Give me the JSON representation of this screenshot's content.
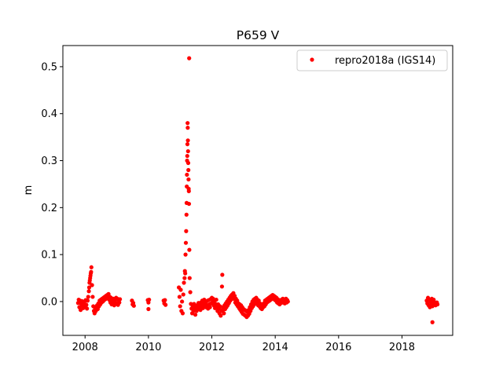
{
  "chart_data": {
    "type": "scatter",
    "title": "P659 V",
    "xlabel": "",
    "ylabel": "m",
    "xlim": [
      2007.3,
      2019.6
    ],
    "ylim": [
      -0.072,
      0.545
    ],
    "x_ticks": [
      2008,
      2010,
      2012,
      2014,
      2016,
      2018
    ],
    "x_tick_labels": [
      "2008",
      "2010",
      "2012",
      "2014",
      "2016",
      "2018"
    ],
    "y_ticks": [
      0.0,
      0.1,
      0.2,
      0.3,
      0.4,
      0.5
    ],
    "y_tick_labels": [
      "0.0",
      "0.1",
      "0.2",
      "0.3",
      "0.4",
      "0.5"
    ],
    "grid": false,
    "legend_position": "top-right",
    "marker_color": "#ff0000",
    "series": [
      {
        "name": "repro2018a (IGS14)",
        "color": "#ff0000",
        "points": [
          [
            2007.78,
            -0.003
          ],
          [
            2007.8,
            0.004
          ],
          [
            2007.82,
            -0.012
          ],
          [
            2007.84,
            0.002
          ],
          [
            2007.86,
            -0.018
          ],
          [
            2007.88,
            -0.005
          ],
          [
            2007.9,
            0.001
          ],
          [
            2007.92,
            -0.009
          ],
          [
            2007.94,
            -0.014
          ],
          [
            2007.96,
            -0.006
          ],
          [
            2007.98,
            0.0
          ],
          [
            2008.0,
            -0.011
          ],
          [
            2008.02,
            0.003
          ],
          [
            2008.04,
            -0.007
          ],
          [
            2008.06,
            -0.015
          ],
          [
            2008.08,
            0.002
          ],
          [
            2008.1,
            0.01
          ],
          [
            2008.12,
            0.022
          ],
          [
            2008.13,
            0.03
          ],
          [
            2008.14,
            0.04
          ],
          [
            2008.15,
            0.045
          ],
          [
            2008.16,
            0.05
          ],
          [
            2008.17,
            0.055
          ],
          [
            2008.18,
            0.06
          ],
          [
            2008.19,
            0.063
          ],
          [
            2008.2,
            0.073
          ],
          [
            2008.22,
            0.035
          ],
          [
            2008.24,
            0.01
          ],
          [
            2008.26,
            -0.01
          ],
          [
            2008.28,
            -0.02
          ],
          [
            2008.3,
            -0.025
          ],
          [
            2008.32,
            -0.015
          ],
          [
            2008.34,
            -0.02
          ],
          [
            2008.36,
            -0.012
          ],
          [
            2008.38,
            -0.008
          ],
          [
            2008.4,
            -0.016
          ],
          [
            2008.42,
            -0.004
          ],
          [
            2008.44,
            -0.01
          ],
          [
            2008.46,
            0.002
          ],
          [
            2008.48,
            -0.006
          ],
          [
            2008.5,
            0.004
          ],
          [
            2008.52,
            -0.002
          ],
          [
            2008.54,
            0.006
          ],
          [
            2008.56,
            0.0
          ],
          [
            2008.58,
            0.008
          ],
          [
            2008.6,
            0.003
          ],
          [
            2008.62,
            0.01
          ],
          [
            2008.64,
            0.005
          ],
          [
            2008.66,
            0.012
          ],
          [
            2008.68,
            0.007
          ],
          [
            2008.7,
            0.014
          ],
          [
            2008.72,
            0.009
          ],
          [
            2008.74,
            0.016
          ],
          [
            2008.76,
            0.004
          ],
          [
            2008.78,
            0.01
          ],
          [
            2008.8,
            -0.002
          ],
          [
            2008.82,
            0.008
          ],
          [
            2008.84,
            -0.006
          ],
          [
            2008.86,
            0.003
          ],
          [
            2008.88,
            -0.004
          ],
          [
            2008.9,
            0.006
          ],
          [
            2008.92,
            -0.008
          ],
          [
            2008.94,
            0.002
          ],
          [
            2008.96,
            -0.005
          ],
          [
            2008.98,
            0.008
          ],
          [
            2009.0,
            -0.003
          ],
          [
            2009.02,
            0.006
          ],
          [
            2009.04,
            -0.007
          ],
          [
            2009.06,
            0.004
          ],
          [
            2009.08,
            -0.002
          ],
          [
            2009.1,
            0.005
          ],
          [
            2009.48,
            0.002
          ],
          [
            2009.5,
            -0.006
          ],
          [
            2009.52,
            -0.003
          ],
          [
            2009.54,
            -0.009
          ],
          [
            2009.98,
            0.003
          ],
          [
            2010.0,
            -0.002
          ],
          [
            2010.02,
            0.004
          ],
          [
            2010.0,
            -0.016
          ],
          [
            2010.48,
            0.002
          ],
          [
            2010.5,
            -0.004
          ],
          [
            2010.52,
            0.003
          ],
          [
            2010.54,
            -0.007
          ],
          [
            2010.96,
            0.03
          ],
          [
            2010.98,
            0.01
          ],
          [
            2011.0,
            -0.01
          ],
          [
            2011.02,
            0.025
          ],
          [
            2011.04,
            -0.02
          ],
          [
            2011.06,
            0.0
          ],
          [
            2011.08,
            -0.025
          ],
          [
            2011.1,
            0.015
          ],
          [
            2011.12,
            0.04
          ],
          [
            2011.14,
            0.05
          ],
          [
            2011.15,
            0.065
          ],
          [
            2011.16,
            0.06
          ],
          [
            2011.17,
            0.1
          ],
          [
            2011.18,
            0.125
          ],
          [
            2011.19,
            0.15
          ],
          [
            2011.2,
            0.185
          ],
          [
            2011.205,
            0.21
          ],
          [
            2011.21,
            0.245
          ],
          [
            2011.215,
            0.27
          ],
          [
            2011.22,
            0.3
          ],
          [
            2011.225,
            0.31
          ],
          [
            2011.23,
            0.335
          ],
          [
            2011.235,
            0.38
          ],
          [
            2011.24,
            0.37
          ],
          [
            2011.245,
            0.343
          ],
          [
            2011.25,
            0.32
          ],
          [
            2011.255,
            0.295
          ],
          [
            2011.26,
            0.28
          ],
          [
            2011.265,
            0.26
          ],
          [
            2011.27,
            0.24
          ],
          [
            2011.275,
            0.235
          ],
          [
            2011.28,
            0.208
          ],
          [
            2011.285,
            0.518
          ],
          [
            2011.29,
            0.11
          ],
          [
            2011.3,
            0.05
          ],
          [
            2011.32,
            0.02
          ],
          [
            2011.34,
            -0.005
          ],
          [
            2011.36,
            -0.015
          ],
          [
            2011.38,
            -0.025
          ],
          [
            2011.4,
            -0.01
          ],
          [
            2011.42,
            -0.02
          ],
          [
            2011.44,
            -0.005
          ],
          [
            2011.46,
            -0.015
          ],
          [
            2011.48,
            -0.028
          ],
          [
            2011.5,
            -0.012
          ],
          [
            2011.52,
            -0.02
          ],
          [
            2011.54,
            -0.008
          ],
          [
            2011.56,
            -0.016
          ],
          [
            2011.58,
            -0.003
          ],
          [
            2011.6,
            -0.012
          ],
          [
            2011.62,
            -0.006
          ],
          [
            2011.64,
            -0.018
          ],
          [
            2011.66,
            -0.002
          ],
          [
            2011.68,
            -0.01
          ],
          [
            2011.7,
            0.002
          ],
          [
            2011.72,
            -0.014
          ],
          [
            2011.74,
            -0.006
          ],
          [
            2011.76,
            0.004
          ],
          [
            2011.78,
            -0.009
          ],
          [
            2011.8,
            -0.002
          ],
          [
            2011.82,
            -0.012
          ],
          [
            2011.84,
            0.001
          ],
          [
            2011.86,
            -0.008
          ],
          [
            2011.88,
            -0.015
          ],
          [
            2011.9,
            0.003
          ],
          [
            2011.92,
            -0.006
          ],
          [
            2011.94,
            -0.012
          ],
          [
            2011.96,
            0.005
          ],
          [
            2011.98,
            -0.004
          ],
          [
            2012.0,
            0.008
          ],
          [
            2012.02,
            -0.002
          ],
          [
            2012.04,
            0.006
          ],
          [
            2012.06,
            -0.008
          ],
          [
            2012.08,
            0.002
          ],
          [
            2012.1,
            -0.014
          ],
          [
            2012.12,
            -0.005
          ],
          [
            2012.14,
            0.004
          ],
          [
            2012.16,
            -0.01
          ],
          [
            2012.18,
            -0.02
          ],
          [
            2012.2,
            -0.006
          ],
          [
            2012.22,
            -0.015
          ],
          [
            2012.24,
            -0.025
          ],
          [
            2012.26,
            -0.01
          ],
          [
            2012.28,
            -0.03
          ],
          [
            2012.3,
            -0.018
          ],
          [
            2012.32,
            0.032
          ],
          [
            2012.33,
            0.057
          ],
          [
            2012.34,
            -0.02
          ],
          [
            2012.36,
            -0.012
          ],
          [
            2012.38,
            -0.025
          ],
          [
            2012.4,
            -0.008
          ],
          [
            2012.42,
            -0.016
          ],
          [
            2012.44,
            -0.004
          ],
          [
            2012.46,
            -0.012
          ],
          [
            2012.48,
            0.0
          ],
          [
            2012.5,
            -0.008
          ],
          [
            2012.52,
            0.004
          ],
          [
            2012.54,
            -0.003
          ],
          [
            2012.56,
            0.008
          ],
          [
            2012.58,
            0.002
          ],
          [
            2012.6,
            0.012
          ],
          [
            2012.62,
            0.005
          ],
          [
            2012.64,
            0.015
          ],
          [
            2012.66,
            0.008
          ],
          [
            2012.68,
            0.018
          ],
          [
            2012.7,
            0.006
          ],
          [
            2012.72,
            0.012
          ],
          [
            2012.74,
            -0.002
          ],
          [
            2012.76,
            0.006
          ],
          [
            2012.78,
            -0.006
          ],
          [
            2012.8,
            0.002
          ],
          [
            2012.82,
            -0.01
          ],
          [
            2012.84,
            -0.004
          ],
          [
            2012.86,
            -0.014
          ],
          [
            2012.88,
            -0.006
          ],
          [
            2012.9,
            -0.018
          ],
          [
            2012.92,
            -0.008
          ],
          [
            2012.94,
            -0.022
          ],
          [
            2012.96,
            -0.012
          ],
          [
            2012.98,
            -0.026
          ],
          [
            2013.0,
            -0.016
          ],
          [
            2013.02,
            -0.028
          ],
          [
            2013.04,
            -0.018
          ],
          [
            2013.06,
            -0.03
          ],
          [
            2013.08,
            -0.02
          ],
          [
            2013.1,
            -0.033
          ],
          [
            2013.12,
            -0.022
          ],
          [
            2013.14,
            -0.03
          ],
          [
            2013.16,
            -0.018
          ],
          [
            2013.18,
            -0.026
          ],
          [
            2013.2,
            -0.012
          ],
          [
            2013.22,
            -0.02
          ],
          [
            2013.24,
            -0.006
          ],
          [
            2013.26,
            -0.014
          ],
          [
            2013.28,
            0.0
          ],
          [
            2013.3,
            -0.01
          ],
          [
            2013.32,
            0.004
          ],
          [
            2013.34,
            -0.006
          ],
          [
            2013.36,
            0.006
          ],
          [
            2013.38,
            -0.002
          ],
          [
            2013.4,
            0.008
          ],
          [
            2013.42,
            -0.004
          ],
          [
            2013.44,
            0.004
          ],
          [
            2013.46,
            -0.008
          ],
          [
            2013.48,
            0.002
          ],
          [
            2013.5,
            -0.01
          ],
          [
            2013.52,
            -0.004
          ],
          [
            2013.54,
            -0.014
          ],
          [
            2013.56,
            -0.006
          ],
          [
            2013.58,
            -0.016
          ],
          [
            2013.6,
            -0.008
          ],
          [
            2013.62,
            -0.012
          ],
          [
            2013.64,
            -0.004
          ],
          [
            2013.66,
            -0.01
          ],
          [
            2013.68,
            0.002
          ],
          [
            2013.7,
            -0.006
          ],
          [
            2013.72,
            0.004
          ],
          [
            2013.74,
            -0.002
          ],
          [
            2013.76,
            0.006
          ],
          [
            2013.78,
            0.0
          ],
          [
            2013.8,
            0.008
          ],
          [
            2013.82,
            0.002
          ],
          [
            2013.84,
            0.01
          ],
          [
            2013.86,
            0.004
          ],
          [
            2013.88,
            0.012
          ],
          [
            2013.9,
            0.006
          ],
          [
            2013.92,
            0.014
          ],
          [
            2013.94,
            0.008
          ],
          [
            2013.96,
            0.012
          ],
          [
            2013.98,
            0.004
          ],
          [
            2014.0,
            0.01
          ],
          [
            2014.02,
            0.002
          ],
          [
            2014.04,
            0.008
          ],
          [
            2014.06,
            -0.002
          ],
          [
            2014.08,
            0.005
          ],
          [
            2014.1,
            -0.004
          ],
          [
            2014.12,
            0.003
          ],
          [
            2014.14,
            -0.006
          ],
          [
            2014.16,
            0.002
          ],
          [
            2014.18,
            -0.003
          ],
          [
            2014.2,
            0.004
          ],
          [
            2014.22,
            -0.002
          ],
          [
            2014.24,
            0.006
          ],
          [
            2014.26,
            0.0
          ],
          [
            2014.28,
            0.004
          ],
          [
            2014.3,
            -0.004
          ],
          [
            2014.32,
            0.002
          ],
          [
            2014.34,
            0.006
          ],
          [
            2014.36,
            -0.002
          ],
          [
            2014.38,
            0.003
          ],
          [
            2014.4,
            0.0
          ],
          [
            2018.78,
            0.002
          ],
          [
            2018.8,
            -0.004
          ],
          [
            2018.82,
            0.008
          ],
          [
            2018.84,
            -0.008
          ],
          [
            2018.86,
            0.004
          ],
          [
            2018.88,
            -0.012
          ],
          [
            2018.9,
            0.0
          ],
          [
            2018.92,
            -0.006
          ],
          [
            2018.94,
            0.006
          ],
          [
            2018.96,
            -0.01
          ],
          [
            2018.98,
            -0.002
          ],
          [
            2019.0,
            0.004
          ],
          [
            2019.02,
            -0.006
          ],
          [
            2019.04,
            -0.002
          ],
          [
            2019.06,
            -0.008
          ],
          [
            2019.08,
            -0.004
          ],
          [
            2019.1,
            -0.002
          ],
          [
            2019.12,
            -0.006
          ],
          [
            2018.96,
            -0.044
          ]
        ]
      }
    ]
  }
}
